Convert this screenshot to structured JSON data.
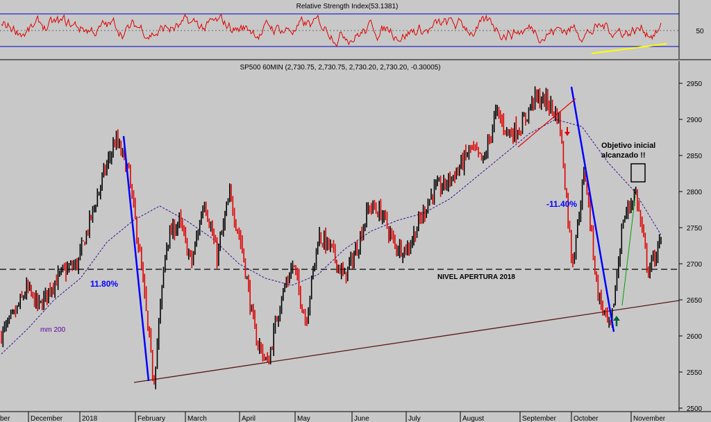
{
  "chart_data": [
    {
      "type": "line",
      "panel": "indicator",
      "title": "Relative Strength Index(53.1381)",
      "y_ticks": [
        50
      ],
      "ylim": [
        0,
        100
      ],
      "levels": [
        30,
        50,
        70
      ],
      "colors": {
        "line": "#e00000",
        "levels": "#0000cc",
        "trendline": "#ffff00"
      }
    },
    {
      "type": "line",
      "panel": "price",
      "title": "SP500 60MIN (2,730.75, 2,730.75, 2,730.20, 2,730.20, -0.30005)",
      "ylim": [
        2500,
        2960
      ],
      "y_ticks": [
        2500,
        2550,
        2600,
        2650,
        2700,
        2750,
        2800,
        2850,
        2900,
        2950
      ],
      "x_labels": [
        "ber",
        "December",
        "2018",
        "February",
        "March",
        "April",
        "May",
        "June",
        "July",
        "August",
        "September",
        "October",
        "November"
      ],
      "series": [
        {
          "name": "",
          "values": [
            2602,
            2628,
            2665,
            2640,
            2672,
            2690,
            2700,
            2760,
            2820,
            2872,
            2830,
            2700,
            2535,
            2730,
            2760,
            2700,
            2790,
            2710,
            2795,
            2720,
            2600,
            2560,
            2650,
            2700,
            2620,
            2740,
            2720,
            2680,
            2720,
            2780,
            2770,
            2725,
            2720,
            2760,
            2800,
            2810,
            2830,
            2860,
            2840,
            2910,
            2880,
            2890,
            2930,
            2925,
            2900,
            2700,
            2830,
            2660,
            2605,
            2760,
            2800,
            2690,
            2730
          ]
        },
        {
          "name": "mm 200",
          "values": [
            2575,
            2610,
            2650,
            2680,
            2730,
            2760,
            2780,
            2760,
            2735,
            2700,
            2680,
            2670,
            2685,
            2720,
            2745,
            2760,
            2770,
            2790,
            2820,
            2850,
            2880,
            2900,
            2890,
            2840,
            2800,
            2740
          ]
        }
      ],
      "reference_levels": [
        {
          "label": "NIVEL APERTURA 2018",
          "value": 2683
        }
      ],
      "annotations": [
        {
          "text": "11.80%",
          "color": "#0000ff"
        },
        {
          "text": "-11.40%",
          "color": "#0000ff"
        },
        {
          "text": "mm 200",
          "color": "#6000a0"
        },
        {
          "text": "Objetivo inicial",
          "color": "#000000"
        },
        {
          "text": "alcanzado !!",
          "color": "#000000"
        }
      ],
      "colors": {
        "background": "#c8c8c8",
        "candle_up": "#000000",
        "candle_down": "#e00000",
        "moving_average": "#3a1090",
        "decline_lines": "#0000ff",
        "support_line": "#5a1818",
        "reference_line": "#000000",
        "arrow_down": "#e00000",
        "arrow_up": "#006040"
      }
    }
  ]
}
